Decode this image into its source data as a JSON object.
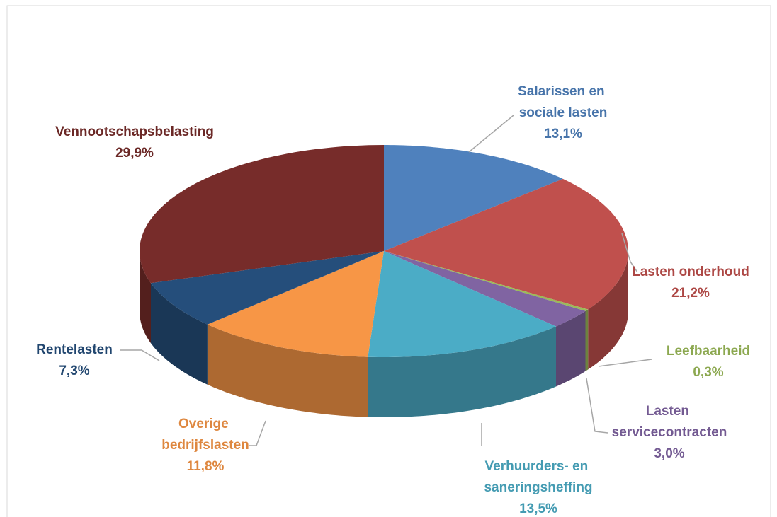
{
  "chart_data": {
    "type": "pie3d",
    "categories": [
      "Salarissen en sociale lasten",
      "Lasten onderhoud",
      "Leefbaarheid",
      "Lasten servicecontracten",
      "Verhuurders- en saneringsheffing",
      "Overige bedrijfslasten",
      "Rentelasten",
      "Vennootschapsbelasting"
    ],
    "values": [
      13.1,
      21.2,
      0.3,
      3.0,
      13.5,
      11.8,
      7.3,
      29.9
    ],
    "value_labels": [
      "13,1%",
      "21,2%",
      "0,3%",
      "3,0%",
      "13,5%",
      "11,8%",
      "7,3%",
      "29,9%"
    ],
    "colors": [
      "#4f81bd",
      "#c0504d",
      "#9bbb59",
      "#8064a2",
      "#4bacc6",
      "#f79646",
      "#254e7b",
      "#772c2a"
    ]
  }
}
